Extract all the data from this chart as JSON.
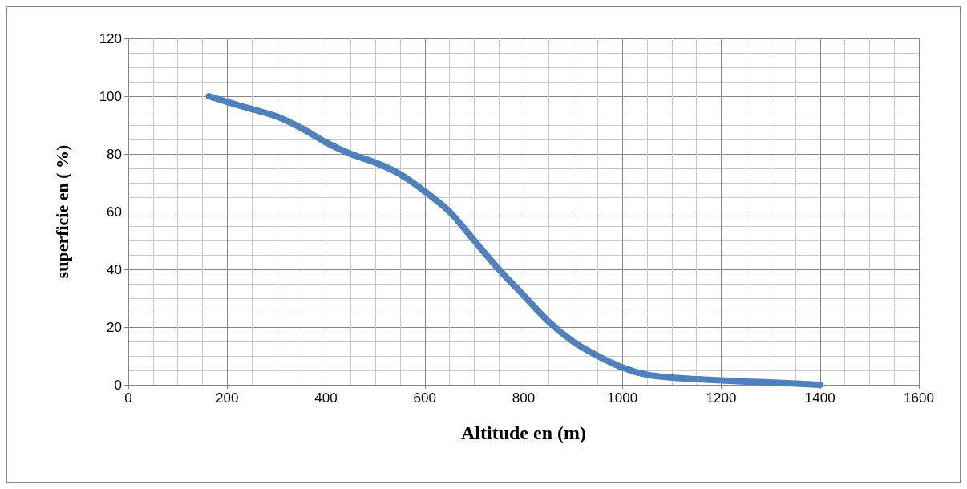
{
  "chart_data": {
    "type": "line",
    "xlabel": "Altitude en (m)",
    "ylabel": "superficie en ( %)",
    "series": [
      {
        "color": "#4f81bd",
        "x": [
          163,
          200,
          250,
          300,
          350,
          400,
          450,
          500,
          550,
          600,
          650,
          700,
          750,
          800,
          850,
          900,
          950,
          1000,
          1050,
          1100,
          1200,
          1300,
          1400
        ],
        "values": [
          100,
          98,
          95.5,
          93,
          89,
          84,
          80,
          77,
          73,
          67,
          60,
          50,
          40,
          31,
          22,
          15,
          10,
          6,
          3.5,
          2.5,
          1.5,
          0.8,
          0
        ]
      }
    ],
    "xlim": [
      0,
      1600
    ],
    "xticks": [
      0,
      200,
      400,
      600,
      800,
      1000,
      1200,
      1400,
      1600
    ],
    "ylim": [
      0,
      120
    ],
    "yticks": [
      0,
      20,
      40,
      60,
      80,
      100,
      120
    ],
    "grid": true,
    "line_style": "solid"
  }
}
